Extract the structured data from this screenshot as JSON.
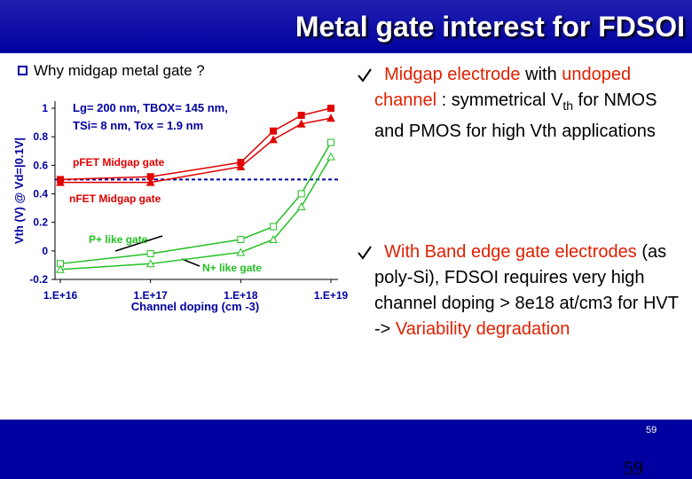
{
  "slide": {
    "title": "Metal gate interest for FDSOI",
    "left_bullet": "Why midgap metal gate ?",
    "bullets": [
      [
        "Midgap electrode",
        " with ",
        "undoped channel",
        " : symmetrical V",
        "th",
        " for NMOS and PMOS for high Vth applications"
      ],
      [
        "With Band edge gate electrodes",
        " (as poly-Si), FDSOI requires very high channel doping  > 8e18 at/cm3 for HVT -> ",
        "Variability degradation"
      ]
    ],
    "page_small": "59",
    "page_number": "59"
  },
  "chart_data": {
    "type": "line",
    "xlabel": "Channel doping (cm -3)",
    "ylabel": "Vth (V) @ Vd=|0.1V|",
    "annotations": [
      "Lg= 200 nm, TBOX= 145 nm,",
      "TSi= 8 nm, Tox = 1.9 nm"
    ],
    "xscale": "log",
    "x": [
      1e+16,
      1e+17,
      1e+18,
      2.3e+18,
      4.7e+18,
      1e+19
    ],
    "xlim": [
      1e+16,
      1e+19
    ],
    "xticks": [
      {
        "value": 1e+16,
        "label": "1.E+16"
      },
      {
        "value": 1e+17,
        "label": "1.E+17"
      },
      {
        "value": 1e+18,
        "label": "1.E+18"
      },
      {
        "value": 1e+19,
        "label": "1.E+19"
      }
    ],
    "ylim": [
      -0.2,
      1
    ],
    "yticks": [
      -0.2,
      0,
      0.2,
      0.4,
      0.6,
      0.8,
      1
    ],
    "hline": 0.5,
    "series": [
      {
        "name": "pFET Midgap gate",
        "color": "#e00000",
        "marker": "square",
        "filled": true,
        "values": [
          0.5,
          0.52,
          0.62,
          0.84,
          0.95,
          1.0
        ]
      },
      {
        "name": "nFET Midgap gate",
        "color": "#e00000",
        "marker": "triangle",
        "filled": true,
        "values": [
          0.48,
          0.48,
          0.59,
          0.78,
          0.89,
          0.93
        ]
      },
      {
        "name": "P+ like gate",
        "color": "#22c022",
        "marker": "square",
        "filled": false,
        "values": [
          -0.09,
          -0.02,
          0.08,
          0.17,
          0.4,
          0.76
        ]
      },
      {
        "name": "N+ like gate",
        "color": "#22c022",
        "marker": "triangle",
        "filled": false,
        "values": [
          -0.13,
          -0.09,
          -0.01,
          0.08,
          0.31,
          0.66
        ]
      }
    ]
  }
}
